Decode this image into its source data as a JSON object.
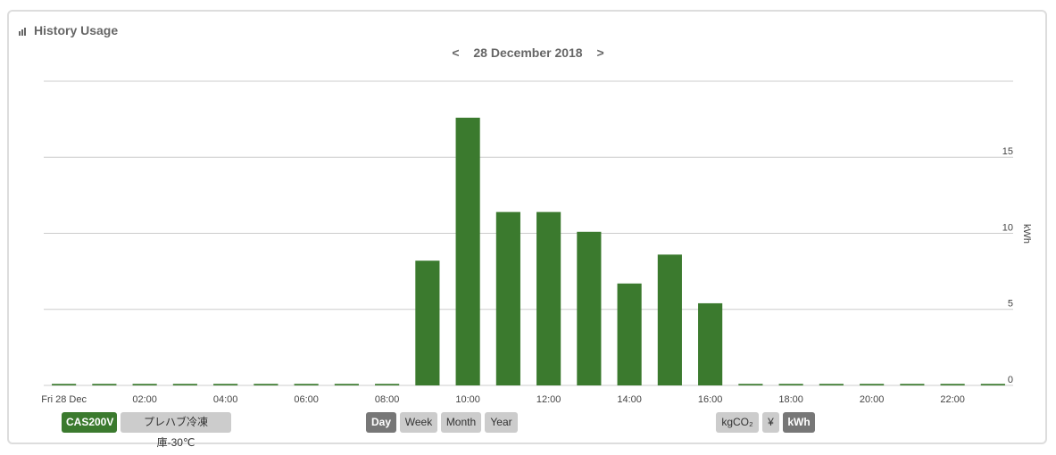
{
  "header": {
    "title": "History Usage"
  },
  "date_nav": {
    "prev": "<",
    "label": "28 December 2018",
    "next": ">"
  },
  "chart_data": {
    "type": "bar",
    "y_label": "kWh",
    "color": "#3b7a2e",
    "grid": true,
    "categories": [
      "Fri 28 Dec",
      null,
      "02:00",
      null,
      "04:00",
      null,
      "06:00",
      null,
      "08:00",
      null,
      "10:00",
      null,
      "12:00",
      null,
      "14:00",
      null,
      "16:00",
      null,
      "18:00",
      null,
      "20:00",
      null,
      "22:00",
      null
    ],
    "values": [
      0.1,
      0.1,
      0.1,
      0.1,
      0.1,
      0.1,
      0.1,
      0.1,
      0.1,
      8.2,
      17.6,
      11.4,
      11.4,
      10.1,
      6.7,
      8.6,
      5.4,
      0.1,
      0.1,
      0.1,
      0.1,
      0.1,
      0.1,
      0.1
    ],
    "ylim": [
      0,
      20
    ],
    "yticks": [
      0,
      5,
      10,
      15
    ]
  },
  "controls": {
    "devices": [
      "CAS200V",
      "プレハブ冷凍庫-30℃"
    ],
    "periods": [
      "Day",
      "Week",
      "Month",
      "Year"
    ],
    "units": [
      "kgCO₂",
      "¥",
      "kWh"
    ]
  }
}
